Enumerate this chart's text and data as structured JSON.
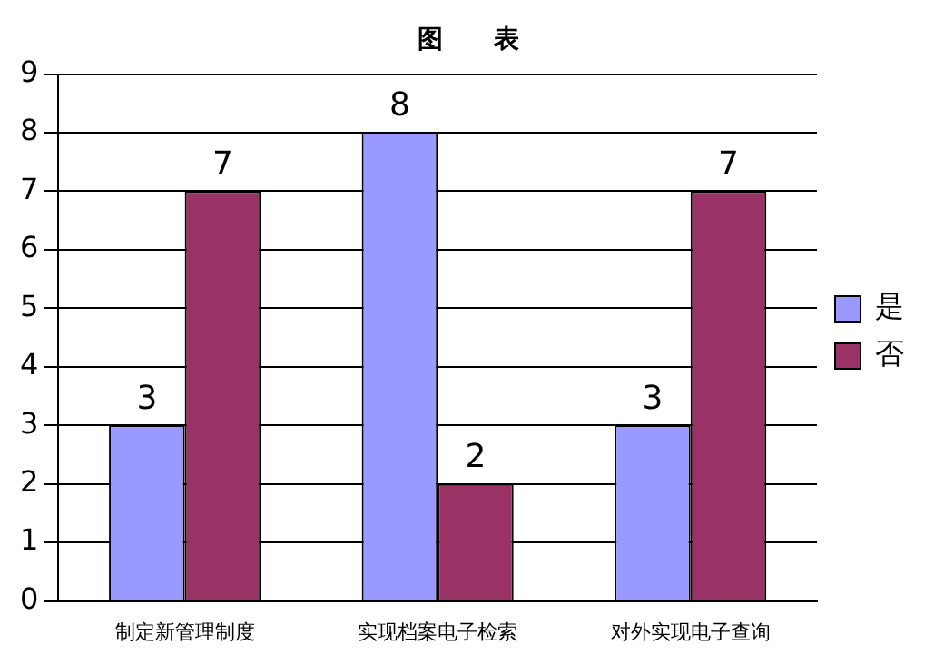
{
  "chart_data": {
    "type": "bar",
    "title": "图　　表",
    "categories": [
      "制定新管理制度",
      "实现档案电子检索",
      "对外实现电子查询"
    ],
    "series": [
      {
        "name": "是",
        "color": "#9999ff",
        "values": [
          3,
          8,
          3
        ]
      },
      {
        "name": "否",
        "color": "#993366",
        "values": [
          7,
          2,
          7
        ]
      }
    ],
    "ylim": [
      0,
      9
    ],
    "yticks": [
      0,
      1,
      2,
      3,
      4,
      5,
      6,
      7,
      8,
      9
    ],
    "grid": "y",
    "legend": "right",
    "data_labels": true
  }
}
